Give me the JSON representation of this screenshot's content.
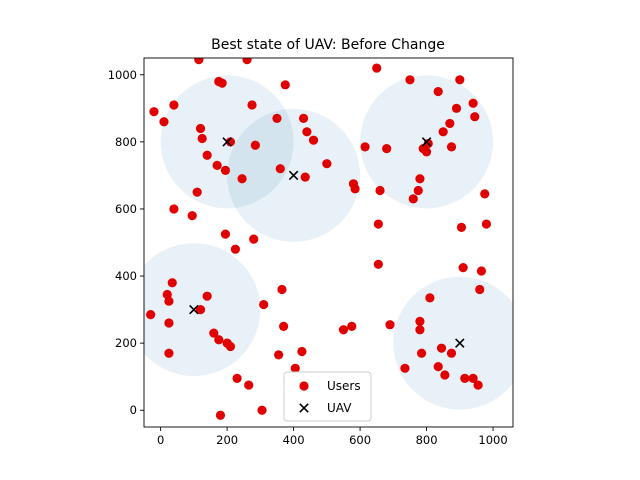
{
  "chart_data": {
    "type": "scatter",
    "title": "Best state of UAV: Before Change",
    "xlabel": "",
    "ylabel": "",
    "xlim": [
      -50,
      1060
    ],
    "ylim": [
      -50,
      1050
    ],
    "xticks": [
      0,
      200,
      400,
      600,
      800,
      1000
    ],
    "yticks": [
      0,
      200,
      400,
      600,
      800,
      1000
    ],
    "grid": false,
    "legend_position": "lower-center",
    "coverage_radius": 200,
    "series": [
      {
        "name": "Users",
        "marker": "circle",
        "color": "#e00000",
        "points": [
          [
            -30,
            285
          ],
          [
            -20,
            890
          ],
          [
            10,
            860
          ],
          [
            20,
            345
          ],
          [
            25,
            325
          ],
          [
            25,
            260
          ],
          [
            25,
            170
          ],
          [
            35,
            380
          ],
          [
            40,
            910
          ],
          [
            40,
            600
          ],
          [
            95,
            580
          ],
          [
            110,
            650
          ],
          [
            115,
            1045
          ],
          [
            120,
            840
          ],
          [
            120,
            300
          ],
          [
            125,
            810
          ],
          [
            140,
            760
          ],
          [
            140,
            340
          ],
          [
            160,
            230
          ],
          [
            170,
            730
          ],
          [
            175,
            210
          ],
          [
            175,
            980
          ],
          [
            180,
            -15
          ],
          [
            185,
            975
          ],
          [
            195,
            715
          ],
          [
            195,
            525
          ],
          [
            200,
            200
          ],
          [
            210,
            800
          ],
          [
            210,
            190
          ],
          [
            225,
            480
          ],
          [
            230,
            95
          ],
          [
            245,
            690
          ],
          [
            260,
            1045
          ],
          [
            265,
            75
          ],
          [
            275,
            910
          ],
          [
            280,
            510
          ],
          [
            285,
            790
          ],
          [
            305,
            0
          ],
          [
            310,
            315
          ],
          [
            350,
            870
          ],
          [
            355,
            165
          ],
          [
            360,
            720
          ],
          [
            365,
            360
          ],
          [
            370,
            250
          ],
          [
            375,
            970
          ],
          [
            405,
            125
          ],
          [
            425,
            175
          ],
          [
            430,
            870
          ],
          [
            435,
            695
          ],
          [
            440,
            830
          ],
          [
            460,
            805
          ],
          [
            500,
            735
          ],
          [
            550,
            240
          ],
          [
            575,
            250
          ],
          [
            580,
            675
          ],
          [
            585,
            660
          ],
          [
            615,
            785
          ],
          [
            650,
            1020
          ],
          [
            655,
            435
          ],
          [
            655,
            555
          ],
          [
            660,
            655
          ],
          [
            680,
            780
          ],
          [
            690,
            255
          ],
          [
            735,
            125
          ],
          [
            750,
            985
          ],
          [
            760,
            630
          ],
          [
            775,
            655
          ],
          [
            780,
            690
          ],
          [
            780,
            265
          ],
          [
            780,
            240
          ],
          [
            785,
            170
          ],
          [
            790,
            780
          ],
          [
            800,
            770
          ],
          [
            805,
            795
          ],
          [
            810,
            335
          ],
          [
            835,
            950
          ],
          [
            835,
            130
          ],
          [
            845,
            185
          ],
          [
            850,
            830
          ],
          [
            855,
            105
          ],
          [
            870,
            855
          ],
          [
            875,
            785
          ],
          [
            875,
            170
          ],
          [
            890,
            900
          ],
          [
            900,
            985
          ],
          [
            905,
            545
          ],
          [
            910,
            425
          ],
          [
            915,
            95
          ],
          [
            940,
            915
          ],
          [
            940,
            95
          ],
          [
            945,
            875
          ],
          [
            955,
            75
          ],
          [
            960,
            360
          ],
          [
            965,
            415
          ],
          [
            975,
            645
          ],
          [
            980,
            555
          ]
        ]
      },
      {
        "name": "UAV",
        "marker": "x",
        "color": "#000000",
        "points": [
          [
            200,
            800
          ],
          [
            400,
            700
          ],
          [
            800,
            800
          ],
          [
            100,
            300
          ],
          [
            900,
            200
          ]
        ]
      }
    ]
  }
}
